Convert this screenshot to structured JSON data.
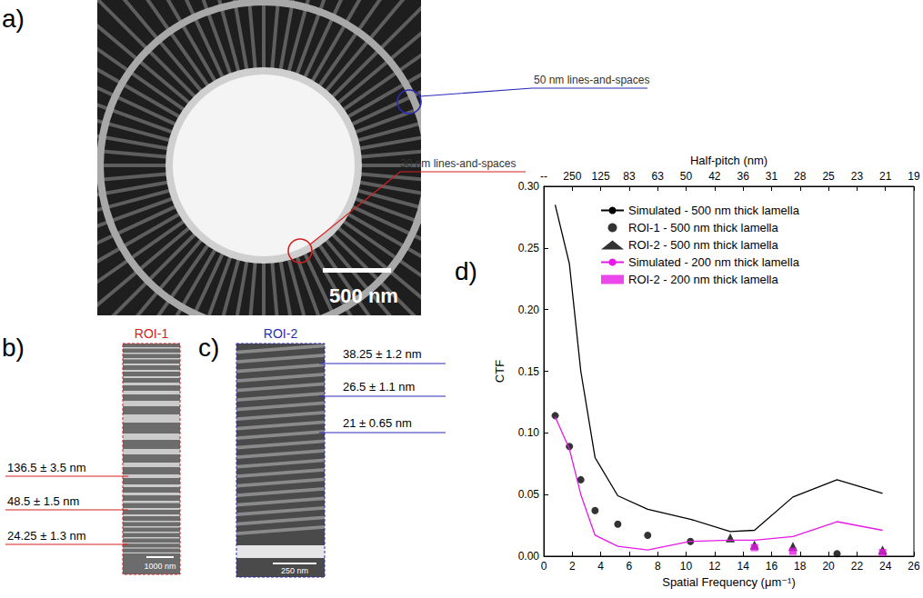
{
  "panels": {
    "a": {
      "label": "a)",
      "scale_bar": "500 nm",
      "annotations": [
        {
          "text": "50 nm lines-and-spaces",
          "color": "#2b2bb8"
        },
        {
          "text": "30 nm lines-and-spaces",
          "color": "#d42020"
        }
      ]
    },
    "b": {
      "label": "b)",
      "title": "ROI-1",
      "color": "#d42020",
      "scale_bar": "1000 nm",
      "measurements": [
        "136.5 ± 3.5 nm",
        "48.5 ± 1.5 nm",
        "24.25 ± 1.3 nm"
      ]
    },
    "c": {
      "label": "c)",
      "title": "ROI-2",
      "color": "#2b2bb8",
      "scale_bar": "250 nm",
      "measurements": [
        "38.25 ± 1.2 nm",
        "26.5 ± 1.1 nm",
        "21 ± 0.65 nm"
      ]
    }
  },
  "chart_data": {
    "type": "line",
    "panel_label": "d)",
    "xlabel": "Spatial Frequency (μm⁻¹)",
    "ylabel": "CTF",
    "x2label": "Half-pitch (nm)",
    "xlim": [
      0,
      26
    ],
    "xticks": [
      0,
      2,
      4,
      6,
      8,
      10,
      12,
      14,
      16,
      18,
      20,
      22,
      24,
      26
    ],
    "x2lim": [
      0,
      26
    ],
    "x2ticks": [
      {
        "value": 0,
        "label": "--"
      },
      {
        "value": 2,
        "label": "250"
      },
      {
        "value": 4,
        "label": "125"
      },
      {
        "value": 6,
        "label": "83"
      },
      {
        "value": 8,
        "label": "63"
      },
      {
        "value": 10,
        "label": "50"
      },
      {
        "value": 12,
        "label": "42"
      },
      {
        "value": 14,
        "label": "36"
      },
      {
        "value": 16,
        "label": "31"
      },
      {
        "value": 18,
        "label": "28"
      },
      {
        "value": 20,
        "label": "25"
      },
      {
        "value": 22,
        "label": "23"
      },
      {
        "value": 24,
        "label": "21"
      },
      {
        "value": 26,
        "label": "19"
      }
    ],
    "ylim": [
      0,
      0.3
    ],
    "yticks": [
      {
        "value": 0,
        "label": "0.00"
      },
      0.05,
      {
        "value": 0.1,
        "label": "0.10"
      },
      0.15,
      {
        "value": 0.2,
        "label": "0.20"
      },
      0.25,
      {
        "value": 0.3,
        "label": "0.30"
      }
    ],
    "grid": false,
    "legend": "upper right",
    "series": [
      {
        "name": "Simulated - 500 nm thick lamella",
        "type": "line",
        "color": "#000000",
        "line_style": "solid",
        "x": [
          0.8,
          1.8,
          2.6,
          3.6,
          5.2,
          7.3,
          10.3,
          13.1,
          14.8,
          17.5,
          20.6,
          23.8
        ],
        "values": [
          0.285,
          0.237,
          0.15,
          0.08,
          0.049,
          0.038,
          0.03,
          0.02,
          0.021,
          0.048,
          0.062,
          0.051
        ]
      },
      {
        "name": "ROI-1 - 500 nm thick lamella",
        "type": "scatter",
        "color": "#000000",
        "marker": "circle",
        "x": [
          0.8,
          1.8,
          2.6,
          3.6,
          5.2,
          7.3,
          10.3,
          20.6
        ],
        "values": [
          0.114,
          0.089,
          0.062,
          0.037,
          0.026,
          0.017,
          0.012,
          0.002
        ]
      },
      {
        "name": "ROI-2 - 500 nm thick lamella",
        "type": "scatter",
        "color": "#000000",
        "marker": "triangle",
        "x": [
          13.1,
          14.8,
          17.5,
          23.8
        ],
        "values": [
          0.015,
          0.009,
          0.008,
          0.005
        ]
      },
      {
        "name": "Simulated - 200 nm thick lamella",
        "type": "line",
        "color": "#e619e6",
        "line_style": "solid",
        "x": [
          0.8,
          1.8,
          2.6,
          3.6,
          5.2,
          7.3,
          10.3,
          13.1,
          14.8,
          17.5,
          20.6,
          23.8
        ],
        "values": [
          0.113,
          0.087,
          0.05,
          0.017,
          0.008,
          0.005,
          0.012,
          0.013,
          0.013,
          0.016,
          0.028,
          0.021
        ]
      },
      {
        "name": "ROI-2 - 200 nm thick lamella",
        "type": "scatter",
        "color": "#e619e6",
        "marker": "square",
        "x": [
          14.8,
          17.5,
          23.8
        ],
        "values": [
          0.007,
          0.004,
          0.003
        ]
      }
    ]
  }
}
